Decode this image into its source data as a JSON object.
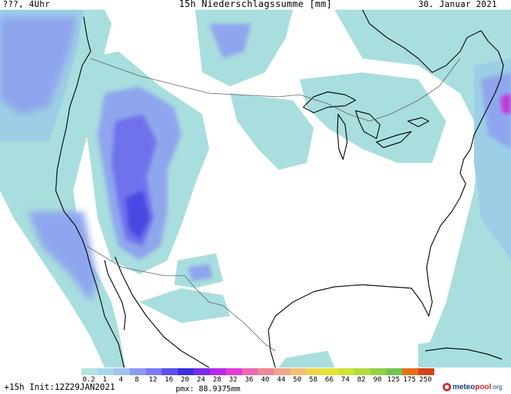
{
  "header": {
    "left_label": "???, 4Uhr",
    "title": "15h Niederschlagssumme [mm]",
    "date": "30. Januar 2021"
  },
  "legend": {
    "labels": [
      "0.2",
      "1",
      "4",
      "8",
      "12",
      "16",
      "20",
      "24",
      "28",
      "32",
      "36",
      "40",
      "44",
      "50",
      "58",
      "66",
      "74",
      "82",
      "90",
      "125",
      "175",
      "250"
    ],
    "colors": [
      "#b6e4df",
      "#a5d8e6",
      "#9fc2ee",
      "#8c9cf0",
      "#7a7af2",
      "#5a52ea",
      "#3b2fe0",
      "#7a2ae6",
      "#b42ae8",
      "#e23ad8",
      "#ec6ab0",
      "#ee8a96",
      "#f0a48a",
      "#f2be74",
      "#eed64c",
      "#e4e436",
      "#cfe23a",
      "#b4da3e",
      "#93d048",
      "#72c452",
      "#e86f18",
      "#d2441a"
    ]
  },
  "footer": {
    "init": "+15h Init:12Z29JAN2021",
    "pmx": "pmx: 88.9375mm",
    "logo_part1": "meteo",
    "logo_part2": "pool",
    "logo_part3": ".org"
  },
  "map": {
    "colors": {
      "light": "#a9dede",
      "cyan": "#9ccfe6",
      "blue": "#8fa6ee",
      "violet": "#6f72ec",
      "deep": "#4c46e2",
      "magenta": "#c43ad8"
    }
  }
}
